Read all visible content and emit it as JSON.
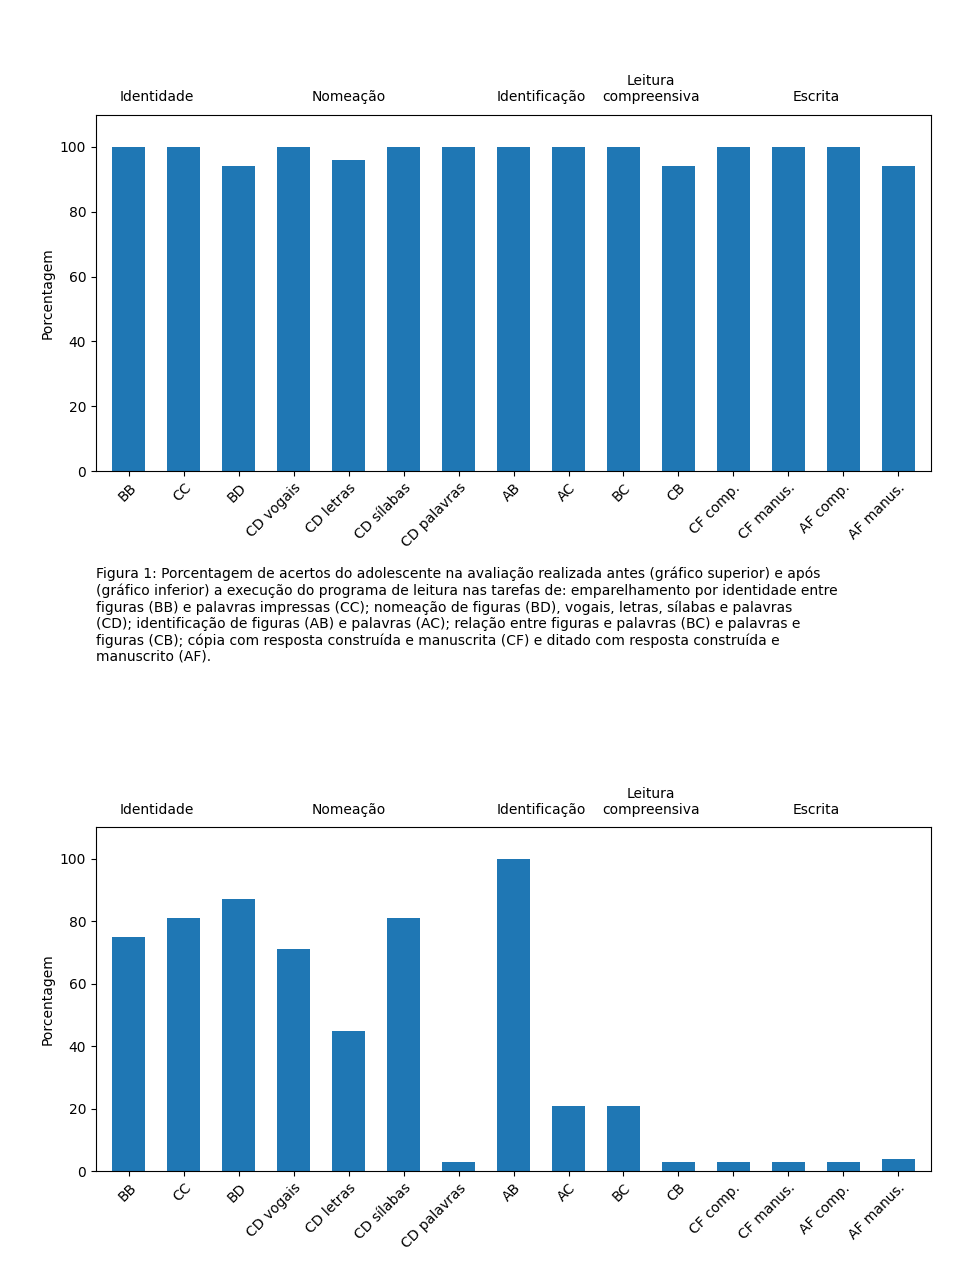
{
  "chart_data": [
    {
      "type": "bar",
      "categories": [
        "BB",
        "CC",
        "BD",
        "CD vogais",
        "CD letras",
        "CD sílabas",
        "CD palavras",
        "AB",
        "AC",
        "BC",
        "CB",
        "CF comp.",
        "CF manus.",
        "AF comp.",
        "AF manus."
      ],
      "values": [
        100,
        100,
        94,
        100,
        96,
        100,
        100,
        100,
        100,
        100,
        94,
        100,
        100,
        100,
        94
      ],
      "y_label": "Porcentagem",
      "ylim": [
        0,
        110
      ],
      "yticks": [
        0,
        20,
        40,
        60,
        80,
        100
      ],
      "annotations": [
        {
          "text": "Identidade",
          "categories": [
            "BB",
            "CC"
          ]
        },
        {
          "text": "Nomeação",
          "categories": [
            "BD",
            "CD vogais",
            "CD letras",
            "CD sílabas",
            "CD palavras"
          ]
        },
        {
          "text": "Identificação",
          "categories": [
            "AB",
            "AC"
          ]
        },
        {
          "text": "Leitura\ncompreensiva",
          "categories": [
            "BC",
            "CB"
          ]
        },
        {
          "text": "Escrita",
          "categories": [
            "CF comp.",
            "CF manus.",
            "AF comp.",
            "AF manus."
          ]
        }
      ]
    },
    {
      "type": "bar",
      "title": "Figura 1: Porcentagem de acertos do adolescente na avaliação realizada antes (gráfico superior) e após\n(gráfico inferior) a execução do programa de leitura nas tarefas de: emparelhamento por identidade entre\nfiguras (BB) e palavras impressas (CC); nomeação de figuras (BD), vogais, letras, sílabas e palavras\n(CD); identificação de figuras (AB) e palavras (AC); relação entre figuras e palavras (BC) e palavras e\nfiguras (CB); cópia com resposta construída e manuscrita (CF) e ditado com resposta construída e\nmanuscrito (AF).",
      "categories": [
        "BB",
        "CC",
        "BD",
        "CD vogais",
        "CD letras",
        "CD sílabas",
        "CD palavras",
        "AB",
        "AC",
        "BC",
        "CB",
        "CF comp.",
        "CF manus.",
        "AF comp.",
        "AF manus."
      ],
      "values": [
        75,
        81,
        87,
        71,
        45,
        81,
        3,
        100,
        21,
        21,
        3,
        3,
        3,
        3,
        4
      ],
      "y_label": "Porcentagem",
      "ylim": [
        0,
        110
      ],
      "yticks": [
        0,
        20,
        40,
        60,
        80,
        100
      ],
      "annotations": [
        {
          "text": "Identidade",
          "categories": [
            "BB",
            "CC"
          ]
        },
        {
          "text": "Nomeação",
          "categories": [
            "BD",
            "CD vogais",
            "CD letras",
            "CD sílabas",
            "CD palavras"
          ]
        },
        {
          "text": "Identificação",
          "categories": [
            "AB",
            "AC"
          ]
        },
        {
          "text": "Leitura\ncompreensiva",
          "categories": [
            "BC",
            "CB"
          ]
        },
        {
          "text": "Escrita",
          "categories": [
            "CF comp.",
            "CF manus.",
            "AF comp.",
            "AF manus."
          ]
        }
      ]
    }
  ]
}
